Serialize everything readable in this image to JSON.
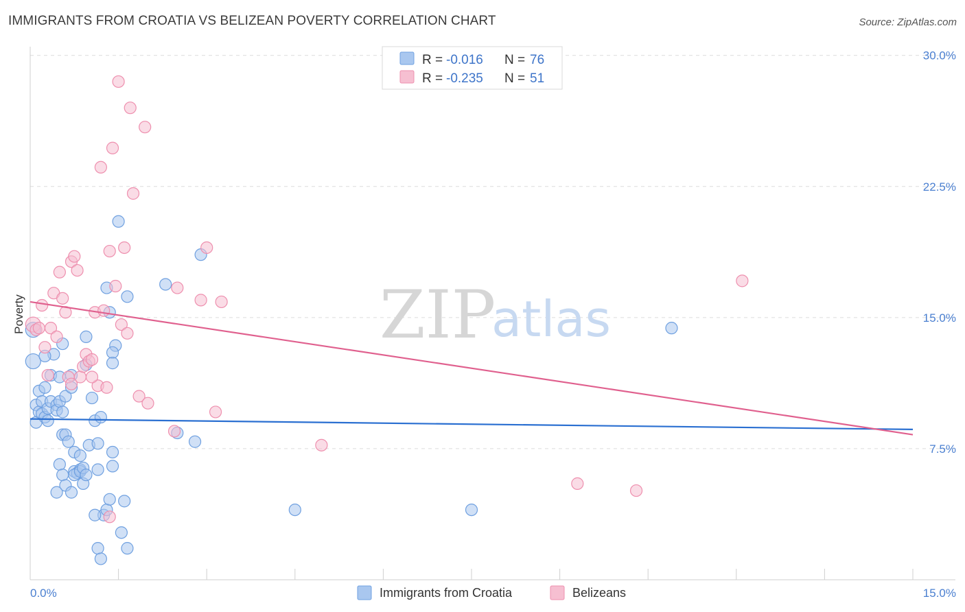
{
  "header": {
    "title": "IMMIGRANTS FROM CROATIA VS BELIZEAN POVERTY CORRELATION CHART",
    "source": "Source: ZipAtlas.com"
  },
  "colors": {
    "blue": "#6fa0e0",
    "blue_fill": "#a9c7ef",
    "blue_line": "#2a6fd1",
    "pink": "#ee8fae",
    "pink_fill": "#f6bfd1",
    "pink_line": "#e0608e"
  },
  "legend": {
    "rows": [
      {
        "r_label": "R =",
        "r_value": "-0.016",
        "n_label": "N =",
        "n_value": "76"
      },
      {
        "r_label": "R =",
        "r_value": "-0.235",
        "n_label": "N =",
        "n_value": "51"
      }
    ]
  },
  "watermark": {
    "zip": "ZIP",
    "atlas": "atlas"
  },
  "chart_data": {
    "type": "scatter",
    "xlabel": "",
    "ylabel": "Poverty",
    "xlim": [
      0,
      15
    ],
    "ylim": [
      0,
      30.5
    ],
    "x_tick_labels": [
      "0.0%",
      "15.0%"
    ],
    "y_ticks": [
      7.5,
      15.0,
      22.5,
      30.0
    ],
    "y_tick_labels": [
      "7.5%",
      "15.0%",
      "22.5%",
      "30.0%"
    ],
    "grid": "horizontal dashed",
    "legend_position": "top-center",
    "series": [
      {
        "name": "Immigrants from Croatia",
        "color": "#6fa0e0",
        "trend": [
          [
            0,
            9.2
          ],
          [
            15,
            8.6
          ]
        ],
        "points": [
          [
            0.05,
            14.3
          ],
          [
            0.05,
            12.5
          ],
          [
            0.1,
            10.0
          ],
          [
            0.1,
            9.0
          ],
          [
            0.15,
            10.8
          ],
          [
            0.15,
            9.6
          ],
          [
            0.2,
            10.2
          ],
          [
            0.2,
            9.5
          ],
          [
            0.25,
            11.0
          ],
          [
            0.25,
            9.3
          ],
          [
            0.3,
            9.1
          ],
          [
            0.3,
            9.8
          ],
          [
            0.35,
            10.2
          ],
          [
            0.35,
            11.7
          ],
          [
            0.4,
            12.9
          ],
          [
            0.45,
            10.0
          ],
          [
            0.45,
            9.7
          ],
          [
            0.5,
            10.2
          ],
          [
            0.5,
            11.6
          ],
          [
            0.55,
            13.5
          ],
          [
            0.55,
            8.3
          ],
          [
            0.55,
            9.6
          ],
          [
            0.6,
            10.5
          ],
          [
            0.6,
            8.3
          ],
          [
            0.65,
            7.9
          ],
          [
            0.7,
            11.0
          ],
          [
            0.7,
            11.7
          ],
          [
            0.75,
            7.3
          ],
          [
            0.75,
            6.2
          ],
          [
            0.8,
            6.1
          ],
          [
            0.85,
            7.1
          ],
          [
            0.85,
            6.3
          ],
          [
            0.9,
            5.5
          ],
          [
            0.95,
            12.3
          ],
          [
            0.95,
            13.9
          ],
          [
            1.0,
            7.7
          ],
          [
            1.05,
            10.4
          ],
          [
            1.1,
            9.1
          ],
          [
            1.15,
            7.8
          ],
          [
            1.15,
            6.3
          ],
          [
            1.2,
            9.3
          ],
          [
            1.25,
            3.7
          ],
          [
            1.3,
            4.0
          ],
          [
            1.35,
            4.6
          ],
          [
            1.4,
            7.3
          ],
          [
            1.4,
            6.5
          ],
          [
            1.45,
            13.4
          ],
          [
            1.5,
            20.5
          ],
          [
            1.55,
            2.7
          ],
          [
            1.6,
            4.5
          ],
          [
            1.65,
            1.8
          ],
          [
            1.3,
            16.7
          ],
          [
            1.35,
            15.3
          ],
          [
            1.4,
            13.0
          ],
          [
            1.4,
            12.4
          ],
          [
            0.5,
            6.6
          ],
          [
            0.55,
            6.0
          ],
          [
            0.6,
            5.4
          ],
          [
            0.7,
            5.0
          ],
          [
            0.75,
            6.0
          ],
          [
            0.85,
            6.2
          ],
          [
            0.9,
            6.4
          ],
          [
            0.95,
            6.0
          ],
          [
            1.1,
            3.7
          ],
          [
            1.15,
            1.8
          ],
          [
            1.2,
            1.2
          ],
          [
            1.65,
            16.2
          ],
          [
            2.3,
            16.9
          ],
          [
            2.5,
            8.4
          ],
          [
            2.8,
            7.9
          ],
          [
            2.9,
            18.6
          ],
          [
            4.5,
            4.0
          ],
          [
            7.5,
            4.0
          ],
          [
            10.9,
            14.4
          ],
          [
            0.45,
            5.0
          ],
          [
            0.25,
            12.8
          ]
        ]
      },
      {
        "name": "Belizeans",
        "color": "#ee8fae",
        "trend": [
          [
            0,
            15.9
          ],
          [
            15,
            8.3
          ]
        ],
        "points": [
          [
            0.05,
            14.6
          ],
          [
            0.1,
            14.3
          ],
          [
            0.15,
            14.4
          ],
          [
            0.2,
            15.7
          ],
          [
            0.25,
            13.3
          ],
          [
            0.3,
            11.7
          ],
          [
            0.35,
            14.4
          ],
          [
            0.4,
            16.4
          ],
          [
            0.45,
            13.9
          ],
          [
            0.5,
            17.6
          ],
          [
            0.55,
            16.1
          ],
          [
            0.6,
            15.3
          ],
          [
            0.65,
            11.6
          ],
          [
            0.7,
            18.2
          ],
          [
            0.75,
            18.5
          ],
          [
            0.8,
            17.7
          ],
          [
            0.85,
            11.6
          ],
          [
            0.9,
            12.2
          ],
          [
            0.95,
            12.9
          ],
          [
            1.0,
            12.5
          ],
          [
            1.05,
            12.6
          ],
          [
            1.1,
            15.3
          ],
          [
            1.15,
            11.1
          ],
          [
            1.2,
            23.6
          ],
          [
            1.25,
            15.4
          ],
          [
            1.3,
            11.0
          ],
          [
            1.35,
            18.8
          ],
          [
            1.4,
            24.7
          ],
          [
            1.45,
            16.8
          ],
          [
            1.5,
            28.5
          ],
          [
            1.55,
            14.6
          ],
          [
            1.6,
            19.0
          ],
          [
            1.65,
            14.1
          ],
          [
            1.7,
            27.0
          ],
          [
            1.75,
            22.1
          ],
          [
            1.85,
            10.5
          ],
          [
            1.95,
            25.9
          ],
          [
            2.0,
            10.1
          ],
          [
            2.45,
            8.5
          ],
          [
            2.5,
            16.7
          ],
          [
            2.9,
            16.0
          ],
          [
            3.0,
            19.0
          ],
          [
            3.15,
            9.6
          ],
          [
            3.25,
            15.9
          ],
          [
            4.95,
            7.7
          ],
          [
            9.3,
            5.5
          ],
          [
            10.3,
            5.1
          ],
          [
            12.1,
            17.1
          ],
          [
            1.35,
            3.6
          ],
          [
            0.7,
            11.2
          ],
          [
            1.05,
            11.6
          ]
        ]
      }
    ]
  }
}
